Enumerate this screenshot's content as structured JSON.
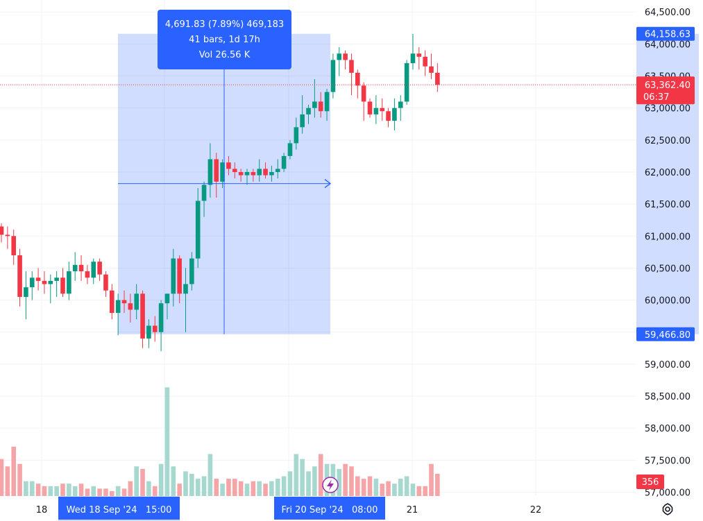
{
  "chart_data": {
    "type": "candlestick",
    "y_axis": {
      "ticks": [
        "64,500.00",
        "64,000.00",
        "63,500.00",
        "63,000.00",
        "62,500.00",
        "62,000.00",
        "61,500.00",
        "61,000.00",
        "60,500.00",
        "60,000.00",
        "59,500.00",
        "59,000.00",
        "58,500.00",
        "58,000.00",
        "57,500.00",
        "57,000.00"
      ],
      "range": [
        56940,
        64600
      ]
    },
    "x_axis": {
      "ticks": [
        "18",
        "21",
        "22"
      ],
      "crosshair_labels": [
        "Wed 18 Sep '24   15:00",
        "Fri 20 Sep '24   08:00"
      ]
    },
    "price_tags": {
      "measure_high": "64,158.63",
      "last_price": "63,362.40",
      "countdown": "06:37",
      "measure_low": "59,466.80",
      "volume": "356"
    },
    "measure": {
      "line1": "4,691.83 (7.89%) 469,183",
      "line2": "41 bars, 1d 17h",
      "line3": "Vol 26.56 K",
      "from_price": 59466.8,
      "to_price": 64158.63
    },
    "candles": [
      [
        61150,
        61200,
        60900,
        61020
      ],
      [
        61020,
        61150,
        60800,
        61000
      ],
      [
        61000,
        61100,
        60550,
        60700
      ],
      [
        60700,
        60800,
        59900,
        60050
      ],
      [
        60050,
        60450,
        59700,
        60200
      ],
      [
        60200,
        60450,
        60000,
        60350
      ],
      [
        60350,
        60500,
        60150,
        60300
      ],
      [
        60300,
        60450,
        60100,
        60250
      ],
      [
        60250,
        60400,
        59950,
        60300
      ],
      [
        60300,
        60450,
        60050,
        60350
      ],
      [
        60350,
        60500,
        60050,
        60100
      ],
      [
        60100,
        60600,
        60000,
        60450
      ],
      [
        60450,
        60750,
        60300,
        60550
      ],
      [
        60550,
        60700,
        60300,
        60450
      ],
      [
        60450,
        60550,
        60250,
        60350
      ],
      [
        60350,
        60650,
        60250,
        60600
      ],
      [
        60600,
        60650,
        60300,
        60400
      ],
      [
        60400,
        60450,
        60050,
        60150
      ],
      [
        60150,
        60250,
        59700,
        59800
      ],
      [
        59800,
        60100,
        59450,
        60000
      ],
      [
        60000,
        60150,
        59800,
        59950
      ],
      [
        59950,
        60100,
        59650,
        59850
      ],
      [
        59850,
        60250,
        59700,
        60100
      ],
      [
        60100,
        60150,
        59250,
        59400
      ],
      [
        59400,
        59700,
        59250,
        59600
      ],
      [
        59600,
        59750,
        59350,
        59500
      ],
      [
        59500,
        60000,
        59200,
        59950
      ],
      [
        59950,
        60100,
        59700,
        60100
      ],
      [
        60100,
        60800,
        59900,
        60650
      ],
      [
        60650,
        60700,
        59950,
        60100
      ],
      [
        60100,
        60500,
        59500,
        60250
      ],
      [
        60250,
        60750,
        60150,
        60650
      ],
      [
        60650,
        61750,
        60500,
        61550
      ],
      [
        61550,
        61850,
        61300,
        61800
      ],
      [
        61800,
        62450,
        61600,
        62200
      ],
      [
        62200,
        62300,
        61600,
        61850
      ],
      [
        61850,
        62200,
        61750,
        62150
      ],
      [
        62150,
        62250,
        61950,
        62050
      ],
      [
        62050,
        62150,
        61900,
        62000
      ],
      [
        62000,
        62050,
        61850,
        61950
      ],
      [
        61950,
        62050,
        61800,
        62000
      ],
      [
        62000,
        62050,
        61850,
        61950
      ],
      [
        61950,
        62200,
        61850,
        62050
      ],
      [
        62050,
        62150,
        61900,
        61950
      ],
      [
        61950,
        62100,
        61850,
        62000
      ],
      [
        62000,
        62200,
        61900,
        62050
      ],
      [
        62050,
        62300,
        62000,
        62250
      ],
      [
        62250,
        62500,
        62200,
        62450
      ],
      [
        62450,
        62850,
        62350,
        62700
      ],
      [
        62700,
        63200,
        62600,
        62900
      ],
      [
        62900,
        63050,
        62750,
        63000
      ],
      [
        63000,
        63450,
        62850,
        63100
      ],
      [
        63100,
        63250,
        62850,
        62950
      ],
      [
        62950,
        63300,
        62800,
        63250
      ],
      [
        63250,
        63850,
        63150,
        63750
      ],
      [
        63750,
        63950,
        63500,
        63850
      ],
      [
        63850,
        63900,
        63600,
        63750
      ],
      [
        63750,
        63850,
        63200,
        63550
      ],
      [
        63550,
        63600,
        63150,
        63350
      ],
      [
        63350,
        63400,
        62800,
        63100
      ],
      [
        63100,
        63150,
        62850,
        62900
      ],
      [
        62900,
        63200,
        62750,
        63000
      ],
      [
        63000,
        63150,
        62800,
        62950
      ],
      [
        62950,
        63000,
        62700,
        62800
      ],
      [
        62800,
        63150,
        62650,
        63000
      ],
      [
        63000,
        63200,
        62800,
        63100
      ],
      [
        63100,
        63750,
        63050,
        63700
      ],
      [
        63700,
        64158,
        63600,
        63850
      ],
      [
        63850,
        63950,
        63600,
        63800
      ],
      [
        63800,
        63900,
        63500,
        63650
      ],
      [
        63650,
        63850,
        63450,
        63550
      ],
      [
        63550,
        63700,
        63250,
        63362
      ]
    ],
    "volumes": [
      1.5,
      1.2,
      2.0,
      1.3,
      0.6,
      0.6,
      0.5,
      0.4,
      0.4,
      0.4,
      0.5,
      0.5,
      0.4,
      0.5,
      0.3,
      0.4,
      0.3,
      0.3,
      0.2,
      0.4,
      0.3,
      0.6,
      1.2,
      1.1,
      0.6,
      0.4,
      1.3,
      4.4,
      1.2,
      0.5,
      1.0,
      0.9,
      0.7,
      0.8,
      1.7,
      0.7,
      0.5,
      0.7,
      0.7,
      0.6,
      0.5,
      0.6,
      0.6,
      0.5,
      0.6,
      0.7,
      0.8,
      1.0,
      1.7,
      1.5,
      1.0,
      1.2,
      1.7,
      1.3,
      1.3,
      1.1,
      1.3,
      1.2,
      0.8,
      0.7,
      0.8,
      0.7,
      0.5,
      0.6,
      0.5,
      0.7,
      0.8,
      0.5,
      0.4,
      0.4,
      1.3,
      0.9
    ],
    "volume_axis_max": 5.0,
    "colors": {
      "up": "#089981",
      "down": "#f23645",
      "vol_up": "#a6d8cf",
      "vol_down": "#f5a5a8",
      "measure_fill": "#2962ff",
      "grid": "#f0f3fa"
    }
  }
}
